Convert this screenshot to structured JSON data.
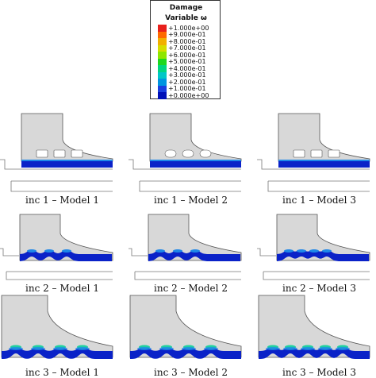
{
  "legend": {
    "title_line1": "Damage",
    "title_line2": "Variable ω",
    "entries": [
      {
        "label": "+1.000e+00",
        "color": "#e8201c"
      },
      {
        "label": "+9.000e-01",
        "color": "#ff6a00"
      },
      {
        "label": "+8.000e-01",
        "color": "#f2b000"
      },
      {
        "label": "+7.000e-01",
        "color": "#d6de00"
      },
      {
        "label": "+6.000e-01",
        "color": "#8fe600"
      },
      {
        "label": "+5.000e-01",
        "color": "#1ed81e"
      },
      {
        "label": "+4.000e-01",
        "color": "#00d680"
      },
      {
        "label": "+3.000e-01",
        "color": "#00c7c7"
      },
      {
        "label": "+2.000e-01",
        "color": "#0095e0"
      },
      {
        "label": "+1.000e-01",
        "color": "#1a3fe0"
      },
      {
        "label": "+0.000e+00",
        "color": "#0010b8"
      }
    ]
  },
  "captions": {
    "r1c1": "inc 1 – Model 1",
    "r1c2": "inc 1 – Model 2",
    "r1c3": "inc 1 – Model 3",
    "r2c1": "inc 2 – Model 1",
    "r2c2": "inc 2 – Model 2",
    "r2c3": "inc 2 – Model 3",
    "r3c1": "inc 3 – Model 1",
    "r3c2": "inc 3 – Model 2",
    "r3c3": "inc 3 – Model 3"
  },
  "colors": {
    "body_fill": "#d8d8d8",
    "body_edge": "#555555",
    "strip_blue": "#0a22c8",
    "strip_light": "#1e88e8",
    "strip_green": "#20d0a0"
  }
}
